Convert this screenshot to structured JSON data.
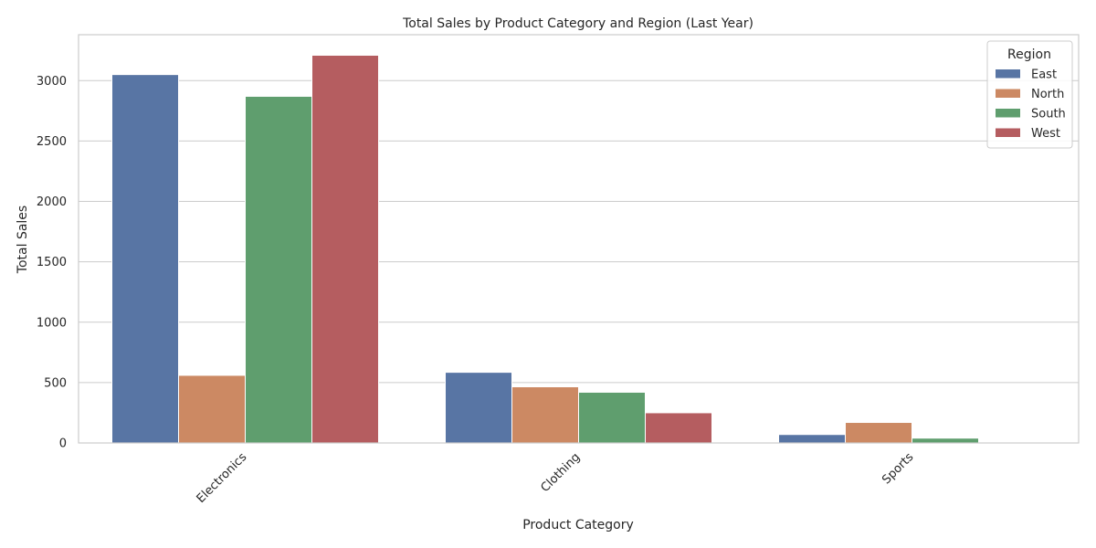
{
  "chart_data": {
    "type": "bar",
    "title": "Total Sales by Product Category and Region (Last Year)",
    "xlabel": "Product Category",
    "ylabel": "Total Sales",
    "categories": [
      "Electronics",
      "Clothing",
      "Sports"
    ],
    "legend_title": "Region",
    "legend_position": "top-right",
    "grid": true,
    "ylim": [
      0,
      3380
    ],
    "yticks": [
      0,
      500,
      1000,
      1500,
      2000,
      2500,
      3000
    ],
    "series": [
      {
        "name": "East",
        "color": "#5875a4",
        "values": [
          3050,
          585,
          70
        ]
      },
      {
        "name": "North",
        "color": "#cc8963",
        "values": [
          560,
          465,
          170
        ]
      },
      {
        "name": "South",
        "color": "#5f9e6e",
        "values": [
          2870,
          420,
          40
        ]
      },
      {
        "name": "West",
        "color": "#b55d60",
        "values": [
          3210,
          250,
          0
        ]
      }
    ]
  }
}
